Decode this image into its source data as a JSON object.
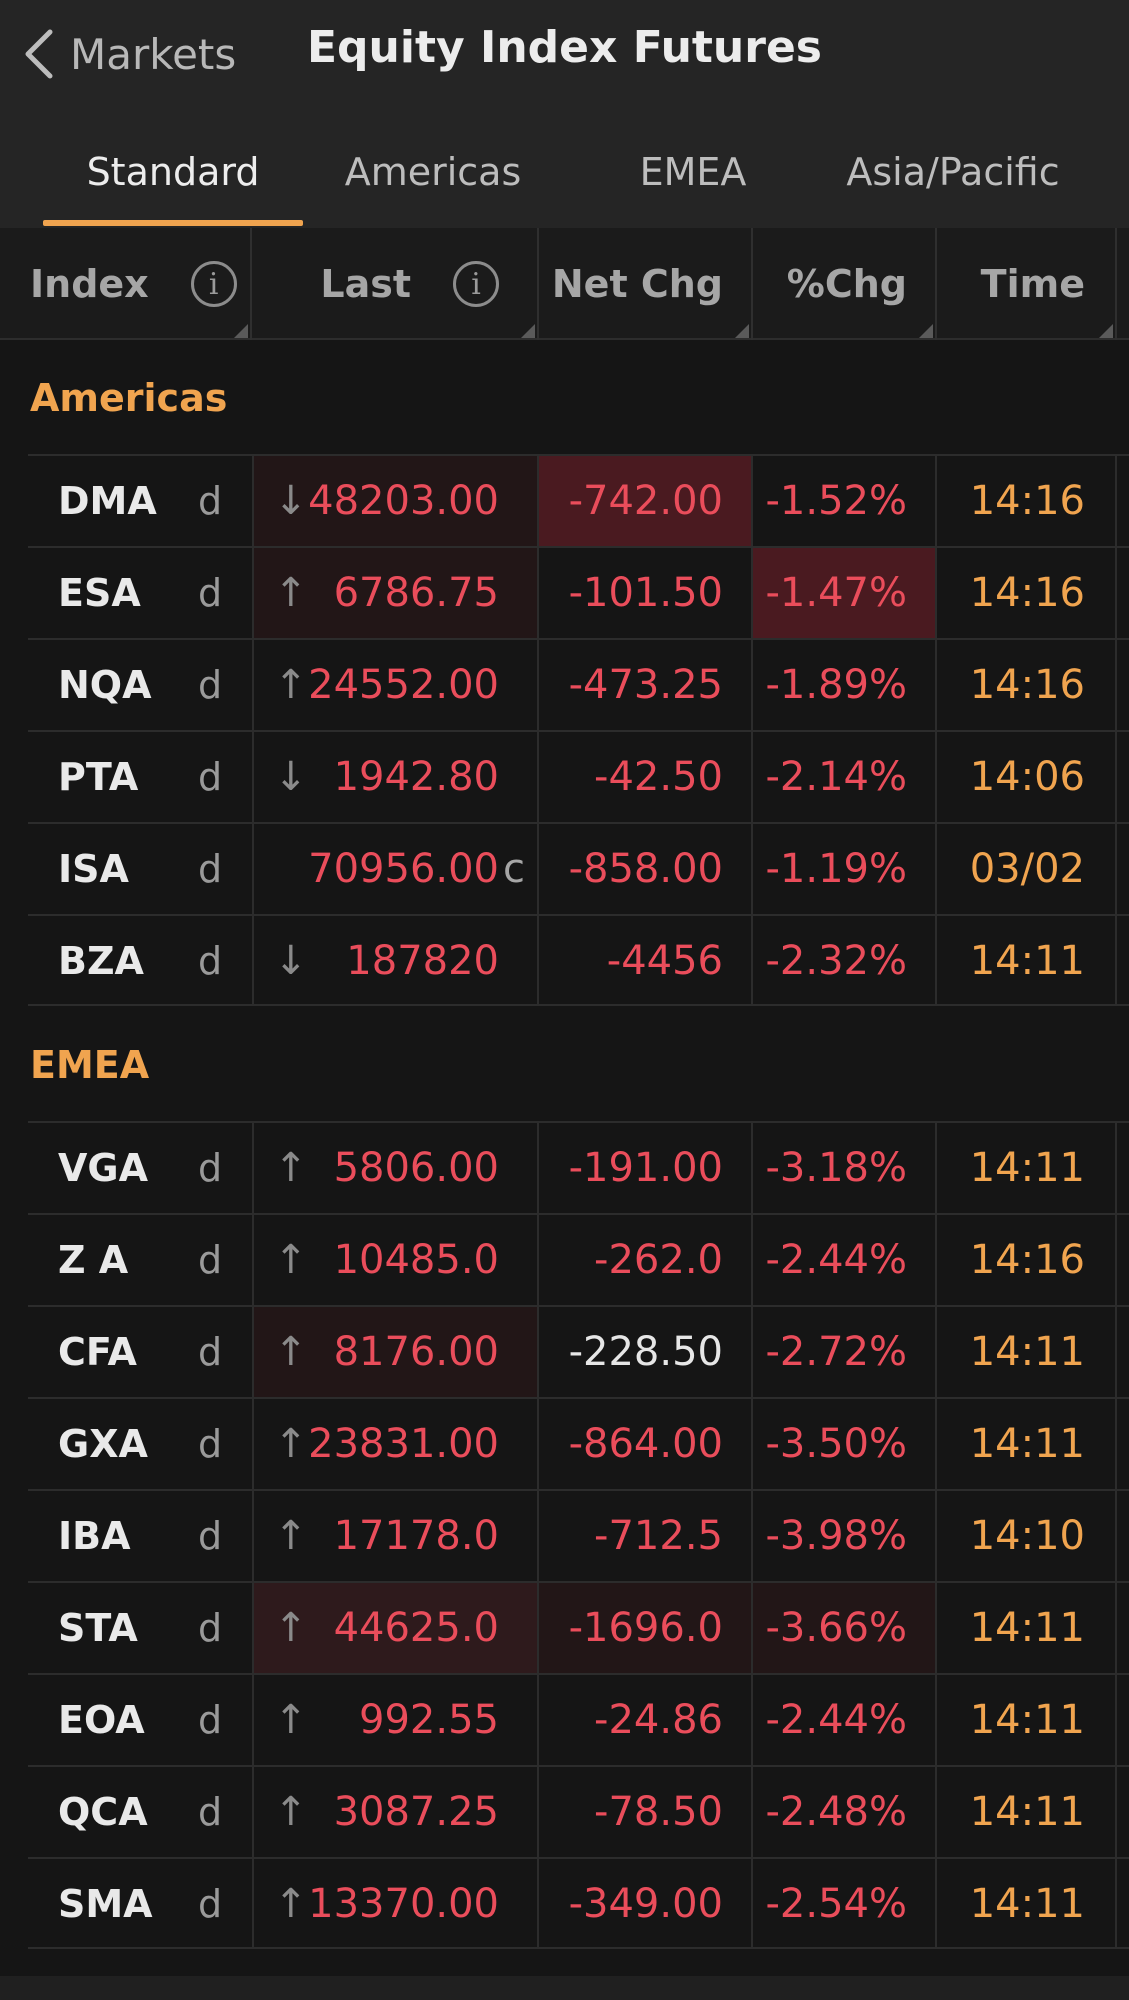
{
  "nav": {
    "back_label": "Markets",
    "title": "Equity Index Futures"
  },
  "tabs": [
    {
      "label": "Standard",
      "active": true
    },
    {
      "label": "Americas",
      "active": false
    },
    {
      "label": "EMEA",
      "active": false
    },
    {
      "label": "Asia/Pacific",
      "active": false
    }
  ],
  "columns": {
    "index": "Index",
    "last": "Last",
    "net_chg": "Net Chg",
    "pct_chg": "%Chg",
    "time": "Time",
    "info_glyph": "i"
  },
  "colors": {
    "accent": "#f0a44f",
    "negative": "#ea4d5b",
    "background": "#151515"
  },
  "sections": [
    {
      "title": "Americas",
      "rows": [
        {
          "name": "DMA",
          "flag": "d",
          "arrow": "↓",
          "last": "48203.00",
          "suffix": "",
          "net": "-742.00",
          "pct": "-1.52%",
          "time": "14:16"
        },
        {
          "name": "ESA",
          "flag": "d",
          "arrow": "↑",
          "last": "6786.75",
          "suffix": "",
          "net": "-101.50",
          "pct": "-1.47%",
          "time": "14:16"
        },
        {
          "name": "NQA",
          "flag": "d",
          "arrow": "↑",
          "last": "24552.00",
          "suffix": "",
          "net": "-473.25",
          "pct": "-1.89%",
          "time": "14:16"
        },
        {
          "name": "PTA",
          "flag": "d",
          "arrow": "↓",
          "last": "1942.80",
          "suffix": "",
          "net": "-42.50",
          "pct": "-2.14%",
          "time": "14:06"
        },
        {
          "name": "ISA",
          "flag": "d",
          "arrow": "",
          "last": "70956.00",
          "suffix": "c",
          "net": "-858.00",
          "pct": "-1.19%",
          "time": "03/02"
        },
        {
          "name": "BZA",
          "flag": "d",
          "arrow": "↓",
          "last": "187820",
          "suffix": "",
          "net": "-4456",
          "pct": "-2.32%",
          "time": "14:11"
        }
      ]
    },
    {
      "title": "EMEA",
      "rows": [
        {
          "name": "VGA",
          "flag": "d",
          "arrow": "↑",
          "last": "5806.00",
          "suffix": "",
          "net": "-191.00",
          "pct": "-3.18%",
          "time": "14:11"
        },
        {
          "name": "Z A",
          "flag": "d",
          "arrow": "↑",
          "last": "10485.0",
          "suffix": "",
          "net": "-262.0",
          "pct": "-2.44%",
          "time": "14:16"
        },
        {
          "name": "CFA",
          "flag": "d",
          "arrow": "↑",
          "last": "8176.00",
          "suffix": "",
          "net": "-228.50",
          "pct": "-2.72%",
          "time": "14:11"
        },
        {
          "name": "GXA",
          "flag": "d",
          "arrow": "↑",
          "last": "23831.00",
          "suffix": "",
          "net": "-864.00",
          "pct": "-3.50%",
          "time": "14:11"
        },
        {
          "name": "IBA",
          "flag": "d",
          "arrow": "↑",
          "last": "17178.0",
          "suffix": "",
          "net": "-712.5",
          "pct": "-3.98%",
          "time": "14:10"
        },
        {
          "name": "STA",
          "flag": "d",
          "arrow": "↑",
          "last": "44625.0",
          "suffix": "",
          "net": "-1696.0",
          "pct": "-3.66%",
          "time": "14:11"
        },
        {
          "name": "EOA",
          "flag": "d",
          "arrow": "↑",
          "last": "992.55",
          "suffix": "",
          "net": "-24.86",
          "pct": "-2.44%",
          "time": "14:11"
        },
        {
          "name": "QCA",
          "flag": "d",
          "arrow": "↑",
          "last": "3087.25",
          "suffix": "",
          "net": "-78.50",
          "pct": "-2.48%",
          "time": "14:11"
        },
        {
          "name": "SMA",
          "flag": "d",
          "arrow": "↑",
          "last": "13370.00",
          "suffix": "",
          "net": "-349.00",
          "pct": "-2.54%",
          "time": "14:11"
        }
      ]
    }
  ]
}
